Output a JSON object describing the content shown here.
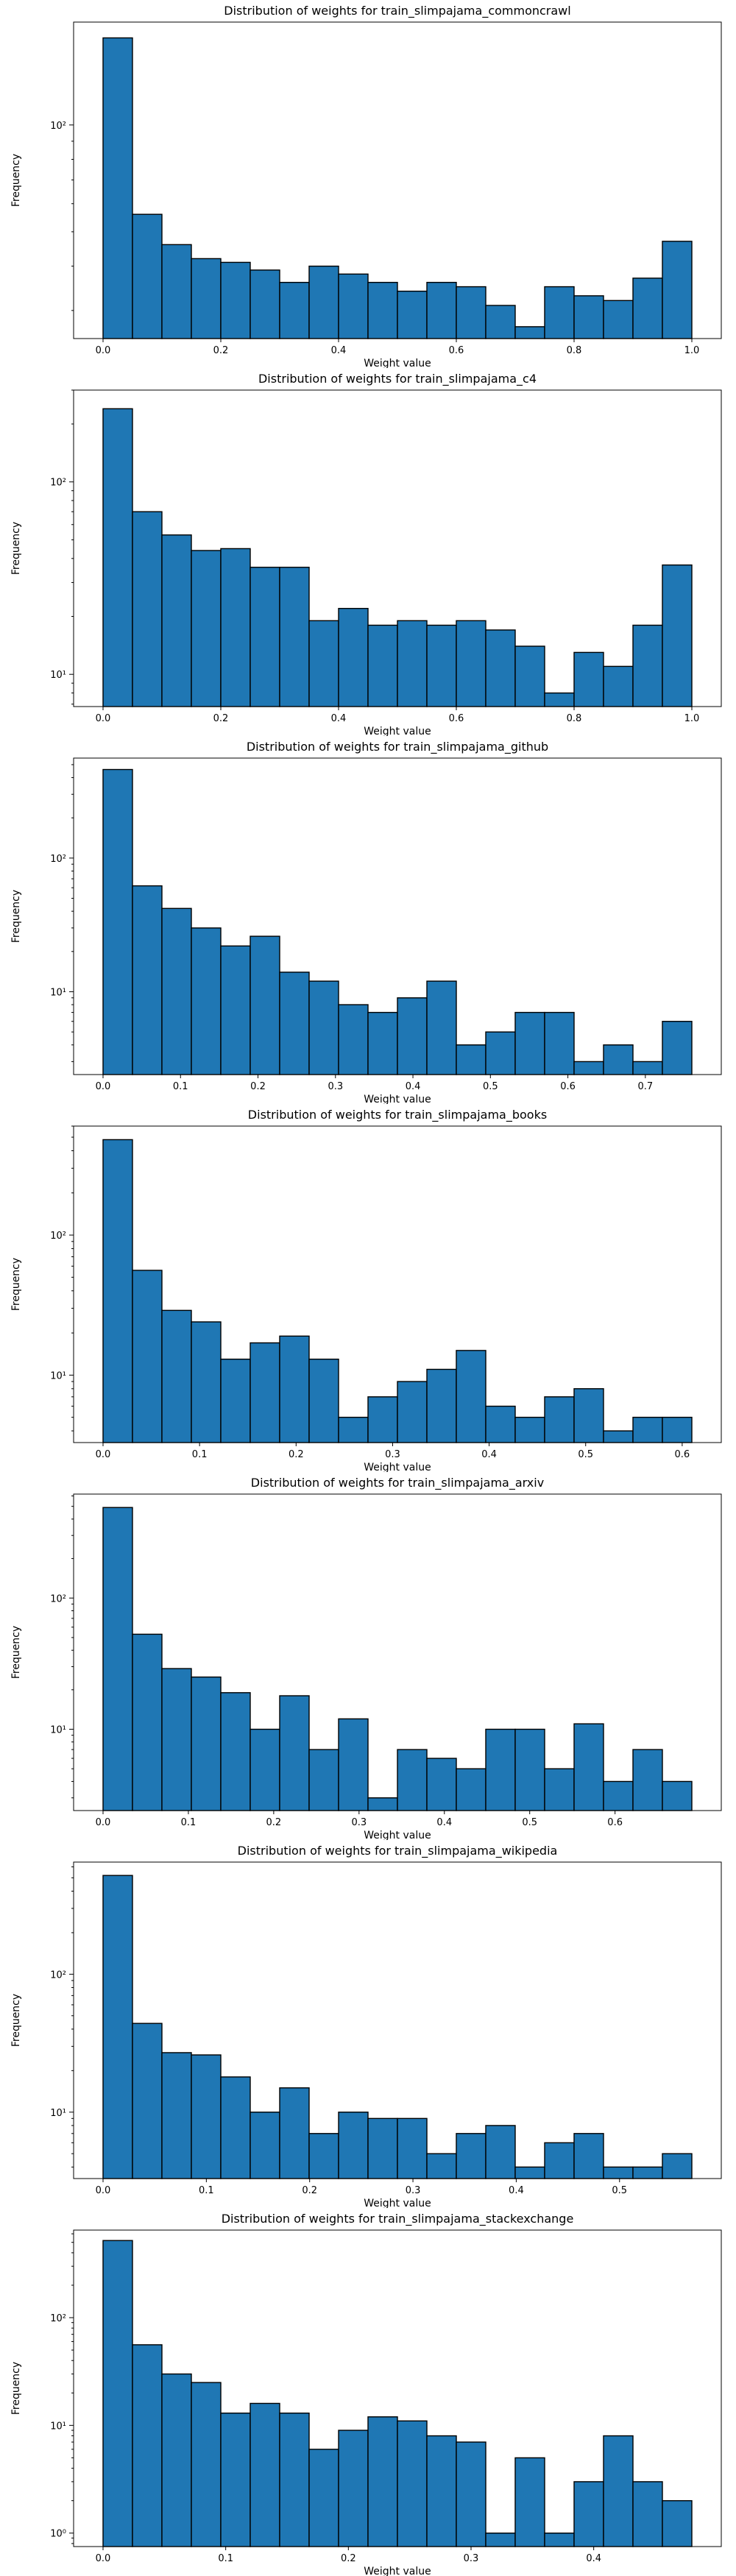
{
  "chart_data": [
    {
      "type": "bar",
      "title": "Distribution of weights for train_slimpajama_commoncrawl",
      "xlabel": "Weight value",
      "ylabel": "Frequency",
      "yscale": "log",
      "xlim": [
        -0.05,
        1.05
      ],
      "ylim": [
        25,
        195
      ],
      "x_range": [
        0.0,
        1.0
      ],
      "xticks": [
        0.0,
        0.2,
        0.4,
        0.6,
        0.8,
        1.0
      ],
      "xtick_labels": [
        "0.0",
        "0.2",
        "0.4",
        "0.6",
        "0.8",
        "1.0"
      ],
      "ytick_labels": [
        "10²"
      ],
      "values": [
        176,
        56,
        46,
        42,
        41,
        39,
        36,
        40,
        38,
        36,
        34,
        36,
        35,
        31,
        27,
        35,
        33,
        32,
        37,
        47
      ]
    },
    {
      "type": "bar",
      "title": "Distribution of weights for train_slimpajama_c4",
      "xlabel": "Weight value",
      "ylabel": "Frequency",
      "yscale": "log",
      "xlim": [
        -0.05,
        1.05
      ],
      "ylim": [
        6.8,
        300
      ],
      "x_range": [
        0.0,
        1.0
      ],
      "xticks": [
        0.0,
        0.2,
        0.4,
        0.6,
        0.8,
        1.0
      ],
      "xtick_labels": [
        "0.0",
        "0.2",
        "0.4",
        "0.6",
        "0.8",
        "1.0"
      ],
      "ytick_labels": [
        "10¹",
        "10²"
      ],
      "values": [
        240,
        70,
        53,
        44,
        45,
        36,
        36,
        19,
        22,
        18,
        19,
        18,
        19,
        17,
        14,
        8,
        13,
        11,
        18,
        37
      ]
    },
    {
      "type": "bar",
      "title": "Distribution of weights for train_slimpajama_github",
      "xlabel": "Weight value",
      "ylabel": "Frequency",
      "yscale": "log",
      "xlim": [
        -0.038,
        0.798
      ],
      "ylim": [
        2.4,
        560
      ],
      "x_range": [
        0.0,
        0.76
      ],
      "xticks": [
        0.0,
        0.1,
        0.2,
        0.3,
        0.4,
        0.5,
        0.6,
        0.7
      ],
      "xtick_labels": [
        "0.0",
        "0.1",
        "0.2",
        "0.3",
        "0.4",
        "0.5",
        "0.6",
        "0.7"
      ],
      "ytick_labels": [
        "10¹",
        "10²"
      ],
      "values": [
        460,
        62,
        42,
        30,
        22,
        26,
        14,
        12,
        8,
        7,
        9,
        12,
        4,
        5,
        7,
        7,
        3,
        4,
        3,
        6
      ]
    },
    {
      "type": "bar",
      "title": "Distribution of weights for train_slimpajama_books",
      "xlabel": "Weight value",
      "ylabel": "Frequency",
      "yscale": "log",
      "xlim": [
        -0.0305,
        0.6405
      ],
      "ylim": [
        3.3,
        600
      ],
      "x_range": [
        0.0,
        0.61
      ],
      "xticks": [
        0.0,
        0.1,
        0.2,
        0.3,
        0.4,
        0.5,
        0.6
      ],
      "xtick_labels": [
        "0.0",
        "0.1",
        "0.2",
        "0.3",
        "0.4",
        "0.5",
        "0.6"
      ],
      "ytick_labels": [
        "10¹",
        "10²"
      ],
      "values": [
        480,
        56,
        29,
        24,
        13,
        17,
        19,
        13,
        5,
        7,
        9,
        11,
        15,
        6,
        5,
        7,
        8,
        4,
        5,
        5
      ]
    },
    {
      "type": "bar",
      "title": "Distribution of weights for train_slimpajama_arxiv",
      "xlabel": "Weight value",
      "ylabel": "Frequency",
      "yscale": "log",
      "xlim": [
        -0.0345,
        0.7245
      ],
      "ylim": [
        2.4,
        620
      ],
      "x_range": [
        0.0,
        0.69
      ],
      "xticks": [
        0.0,
        0.1,
        0.2,
        0.3,
        0.4,
        0.5,
        0.6
      ],
      "xtick_labels": [
        "0.0",
        "0.1",
        "0.2",
        "0.3",
        "0.4",
        "0.5",
        "0.6"
      ],
      "ytick_labels": [
        "10¹",
        "10²"
      ],
      "values": [
        490,
        53,
        29,
        25,
        19,
        10,
        18,
        7,
        12,
        3,
        7,
        6,
        5,
        10,
        10,
        5,
        11,
        4,
        7,
        4
      ]
    },
    {
      "type": "bar",
      "title": "Distribution of weights for train_slimpajama_wikipedia",
      "xlabel": "Weight value",
      "ylabel": "Frequency",
      "yscale": "log",
      "xlim": [
        -0.0285,
        0.5985
      ],
      "ylim": [
        3.3,
        650
      ],
      "x_range": [
        0.0,
        0.57
      ],
      "xticks": [
        0.0,
        0.1,
        0.2,
        0.3,
        0.4,
        0.5
      ],
      "xtick_labels": [
        "0.0",
        "0.1",
        "0.2",
        "0.3",
        "0.4",
        "0.5"
      ],
      "ytick_labels": [
        "10¹",
        "10²"
      ],
      "values": [
        520,
        44,
        27,
        26,
        18,
        10,
        15,
        7,
        10,
        9,
        9,
        5,
        7,
        8,
        4,
        6,
        7,
        4,
        4,
        5
      ]
    },
    {
      "type": "bar",
      "title": "Distribution of weights for train_slimpajama_stackexchange",
      "xlabel": "Weight value",
      "ylabel": "Frequency",
      "yscale": "log",
      "xlim": [
        -0.024,
        0.504
      ],
      "ylim": [
        0.75,
        650
      ],
      "x_range": [
        0.0,
        0.48
      ],
      "xticks": [
        0.0,
        0.1,
        0.2,
        0.3,
        0.4
      ],
      "xtick_labels": [
        "0.0",
        "0.1",
        "0.2",
        "0.3",
        "0.4"
      ],
      "ytick_labels": [
        "10⁰",
        "10¹",
        "10²"
      ],
      "values": [
        520,
        56,
        30,
        25,
        13,
        16,
        13,
        6,
        9,
        12,
        11,
        8,
        7,
        1,
        5,
        1,
        3,
        8,
        3,
        2
      ]
    }
  ]
}
